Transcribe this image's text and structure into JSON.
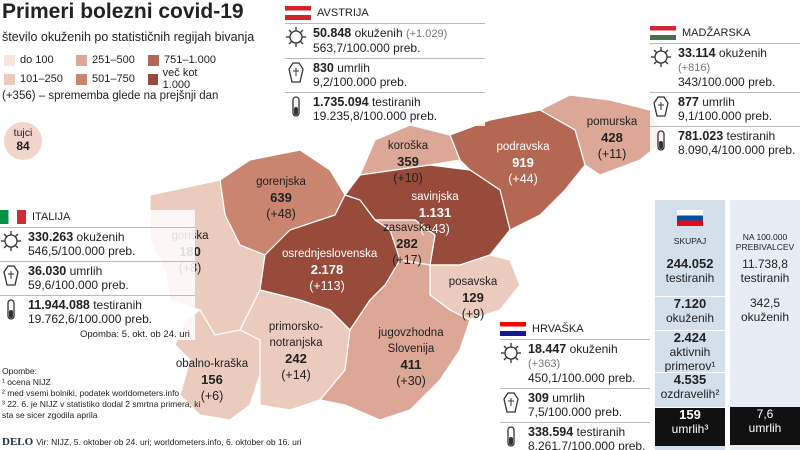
{
  "header": {
    "title": "Primeri bolezni covid-19",
    "subtitle": "število okuženih po statističnih regijah bivanja"
  },
  "legend": {
    "items": [
      {
        "label": "do 100",
        "color": "#f7e5de"
      },
      {
        "label": "101–250",
        "color": "#eccbbf"
      },
      {
        "label": "251–500",
        "color": "#dca797"
      },
      {
        "label": "501–750",
        "color": "#c9856f"
      },
      {
        "label": "751–1.000",
        "color": "#b46753"
      },
      {
        "label": "več kot 1.000",
        "color": "#984b3b"
      }
    ],
    "note": "(+356) – sprememba glede na prejšnji dan"
  },
  "foreigners": {
    "label": "tujci",
    "value": "84"
  },
  "regions": [
    {
      "name": "pomurska",
      "cases": "428",
      "change": "(+11)"
    },
    {
      "name": "koroška",
      "cases": "359",
      "change": "(+10)"
    },
    {
      "name": "podravska",
      "cases": "919",
      "change": "(+44)"
    },
    {
      "name": "gorenjska",
      "cases": "639",
      "change": "(+48)"
    },
    {
      "name": "savinjska",
      "cases": "1.131",
      "change": "(+43)"
    },
    {
      "name": "zasavska",
      "cases": "282",
      "change": "(+17)"
    },
    {
      "name": "goriška",
      "cases": "180",
      "change": "(+8)"
    },
    {
      "name": "osrednjeslovenska",
      "cases": "2.178",
      "change": "(+113)"
    },
    {
      "name": "posavska",
      "cases": "129",
      "change": "(+9)"
    },
    {
      "name": "primorsko-notranjska",
      "cases": "242",
      "change": "(+14)"
    },
    {
      "name": "jugovzhodna Slovenija",
      "cases": "411",
      "change": "(+30)"
    },
    {
      "name": "obalno-kraška",
      "cases": "156",
      "change": "(+6)"
    }
  ],
  "countries": [
    {
      "name": "AVSTRIJA",
      "rows": [
        {
          "value": "50.848",
          "label": "okuženih",
          "change": "(+1.029)",
          "rate": "563,7/100.000 preb."
        },
        {
          "value": "830",
          "label": "umrlih",
          "rate": "9,2/100.000 preb."
        },
        {
          "value": "1.735.094",
          "label": "testiranih",
          "rate": "19.235,8/100.000 preb."
        }
      ]
    },
    {
      "name": "MADŽARSKA",
      "rows": [
        {
          "value": "33.114",
          "label": "okuženih",
          "change": "(+816)",
          "rate": "343/100.000 preb."
        },
        {
          "value": "877",
          "label": "umrlih",
          "rate": "9,1/100.000 preb."
        },
        {
          "value": "781.023",
          "label": "testiranih",
          "rate": "8.090,4/100.000 preb."
        }
      ]
    },
    {
      "name": "ITALIJA",
      "rows": [
        {
          "value": "330.263",
          "label": "okuženih",
          "rate": "546,5/100.000 preb."
        },
        {
          "value": "36.030",
          "label": "umrlih",
          "rate": "59,6/100.000 preb."
        },
        {
          "value": "11.944.088",
          "label": "testiranih",
          "rate": "19.762,6/100.000 preb."
        }
      ],
      "note": "Opomba: 5. okt. ob 24. uri"
    },
    {
      "name": "HRVAŠKA",
      "rows": [
        {
          "value": "18.447",
          "label": "okuženih",
          "change": "(+363)",
          "rate": "450,1/100.000 preb."
        },
        {
          "value": "309",
          "label": "umrlih",
          "rate": "7,5/100.000 preb."
        },
        {
          "value": "338.594",
          "label": "testiranih",
          "rate": "8.261,7/100.000 preb."
        }
      ]
    }
  ],
  "slovenia": {
    "total_header": "SKUPAJ",
    "rate_header": "NA 100.000 PREBIVALCEV",
    "rows": [
      {
        "total": {
          "value": "244.052",
          "label": "testiranih"
        },
        "rate": {
          "value": "11.738,8",
          "label": "testiranih"
        }
      },
      {
        "total": {
          "value": "7.120",
          "label": "okuženih"
        },
        "rate": {
          "value": "342,5",
          "label": "okuženih"
        }
      },
      {
        "total": {
          "value": "2.424",
          "label": "aktivnih primerov¹"
        }
      },
      {
        "total": {
          "value": "4.535",
          "label": "ozdravelih²"
        }
      },
      {
        "total": {
          "value": "159",
          "label": "umrlih³"
        },
        "rate": {
          "value": "7,6",
          "label": "umrlih"
        }
      }
    ]
  },
  "footnotes": {
    "title": "Opombe:",
    "items": [
      "¹ ocena NIJZ",
      "² med vsemi bolniki, podatek worldometers.info",
      "³ 22. 6. je NIJZ v statistiko dodal 2 smrtna primera, ki sta se sicer zgodila aprila"
    ]
  },
  "source": {
    "brand": "DELO",
    "text": "Vir: NIJZ, 5. oktober ob 24. uri; worldometers.info, 6. oktober ob 16. uri"
  }
}
